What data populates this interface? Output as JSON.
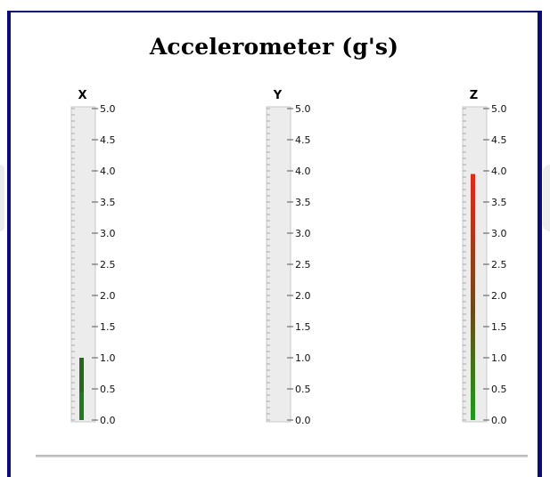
{
  "panel": {
    "title": "Accelerometer (g's)"
  },
  "gauge_scale": {
    "min": 0.0,
    "max": 5.0,
    "tick_labels": [
      "0.0",
      "0.5",
      "1.0",
      "1.5",
      "2.0",
      "2.5",
      "3.0",
      "3.5",
      "4.0",
      "4.5",
      "5.0"
    ]
  },
  "gauges": [
    {
      "axis": "X",
      "value": 1.0
    },
    {
      "axis": "Y",
      "value": 0.0
    },
    {
      "axis": "Z",
      "value": 3.95
    }
  ],
  "colors": {
    "frame": "#0b0b7a",
    "track": "#ececec",
    "track_border": "#c8c8c8",
    "fill_low": "#1e9a1e",
    "fill_mid": "#6a4a1a",
    "fill_high": "#e02a1a"
  }
}
